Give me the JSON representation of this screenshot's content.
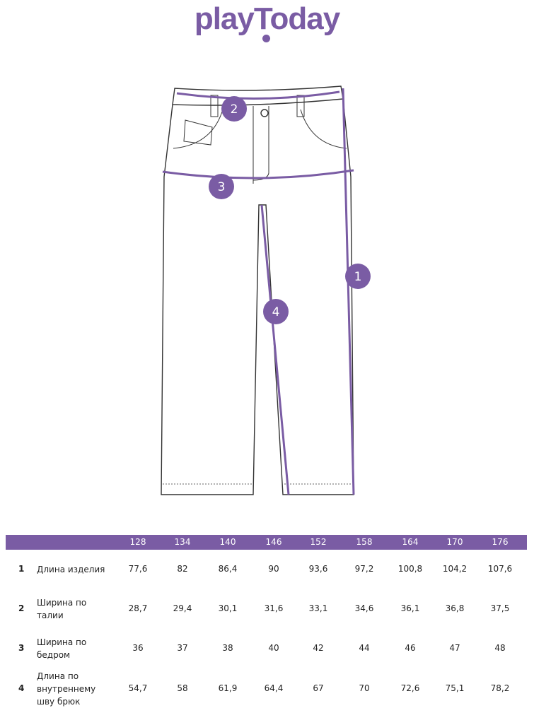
{
  "brand": {
    "logo_text": "playToday",
    "color": "#7a5ca4"
  },
  "diagram": {
    "markers": [
      "1",
      "2",
      "3",
      "4"
    ],
    "marker_color": "#7a5ca4"
  },
  "table": {
    "sizes": [
      "128",
      "134",
      "140",
      "146",
      "152",
      "158",
      "164",
      "170",
      "176"
    ],
    "rows": [
      {
        "num": "1",
        "label": "Длина изделия",
        "values": [
          "77,6",
          "82",
          "86,4",
          "90",
          "93,6",
          "97,2",
          "100,8",
          "104,2",
          "107,6"
        ]
      },
      {
        "num": "2",
        "label": "Ширина по талии",
        "values": [
          "28,7",
          "29,4",
          "30,1",
          "31,6",
          "33,1",
          "34,6",
          "36,1",
          "36,8",
          "37,5"
        ]
      },
      {
        "num": "3",
        "label": "Ширина по бедром",
        "values": [
          "36",
          "37",
          "38",
          "40",
          "42",
          "44",
          "46",
          "47",
          "48"
        ]
      },
      {
        "num": "4",
        "label": "Длина по внутреннему шву брюк",
        "values": [
          "54,7",
          "58",
          "61,9",
          "64,4",
          "67",
          "70",
          "72,6",
          "75,1",
          "78,2"
        ]
      }
    ]
  }
}
